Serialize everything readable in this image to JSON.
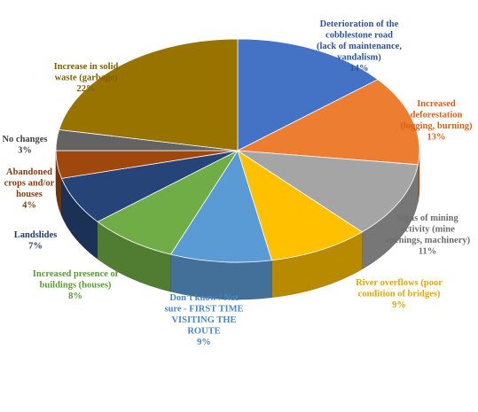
{
  "chart_data": {
    "type": "pie",
    "title": "",
    "slices": [
      {
        "label": "Deterioration of the cobblestone road (lack of maintenance, vandalism)",
        "value": 14,
        "display": "14%",
        "color": "#4472C4",
        "text_color": "#2E5597"
      },
      {
        "label": "Increased deforestation (logging, burning)",
        "value": 13,
        "display": "13%",
        "color": "#ED7D31",
        "text_color": "#D9601A"
      },
      {
        "label": "Signs of mining activity (mine openings, machinery)",
        "value": 11,
        "display": "11%",
        "color": "#A5A5A5",
        "text_color": "#6E6E6E"
      },
      {
        "label": "River overflows (poor condition of bridges)",
        "value": 9,
        "display": "9%",
        "color": "#FFC000",
        "text_color": "#E0A800"
      },
      {
        "label": "Don't know / Not sure - FIRST TIME VISITING THE ROUTE",
        "value": 9,
        "display": "9%",
        "color": "#5B9BD5",
        "text_color": "#4A86C5"
      },
      {
        "label": "Increased presence of buildings (houses)",
        "value": 8,
        "display": "8%",
        "color": "#70AD47",
        "text_color": "#5A9A35"
      },
      {
        "label": "Landslides",
        "value": 7,
        "display": "7%",
        "color": "#264478",
        "text_color": "#1F3864"
      },
      {
        "label": "Abandoned crops and/or houses",
        "value": 4,
        "display": "4%",
        "color": "#9E480E",
        "text_color": "#843C0C"
      },
      {
        "label": "No changes",
        "value": 3,
        "display": "3%",
        "color": "#636363",
        "text_color": "#404040"
      },
      {
        "label": "Increase in solid waste (garbage)",
        "value": 22,
        "display": "22%",
        "color": "#997300",
        "text_color": "#806000"
      }
    ]
  }
}
